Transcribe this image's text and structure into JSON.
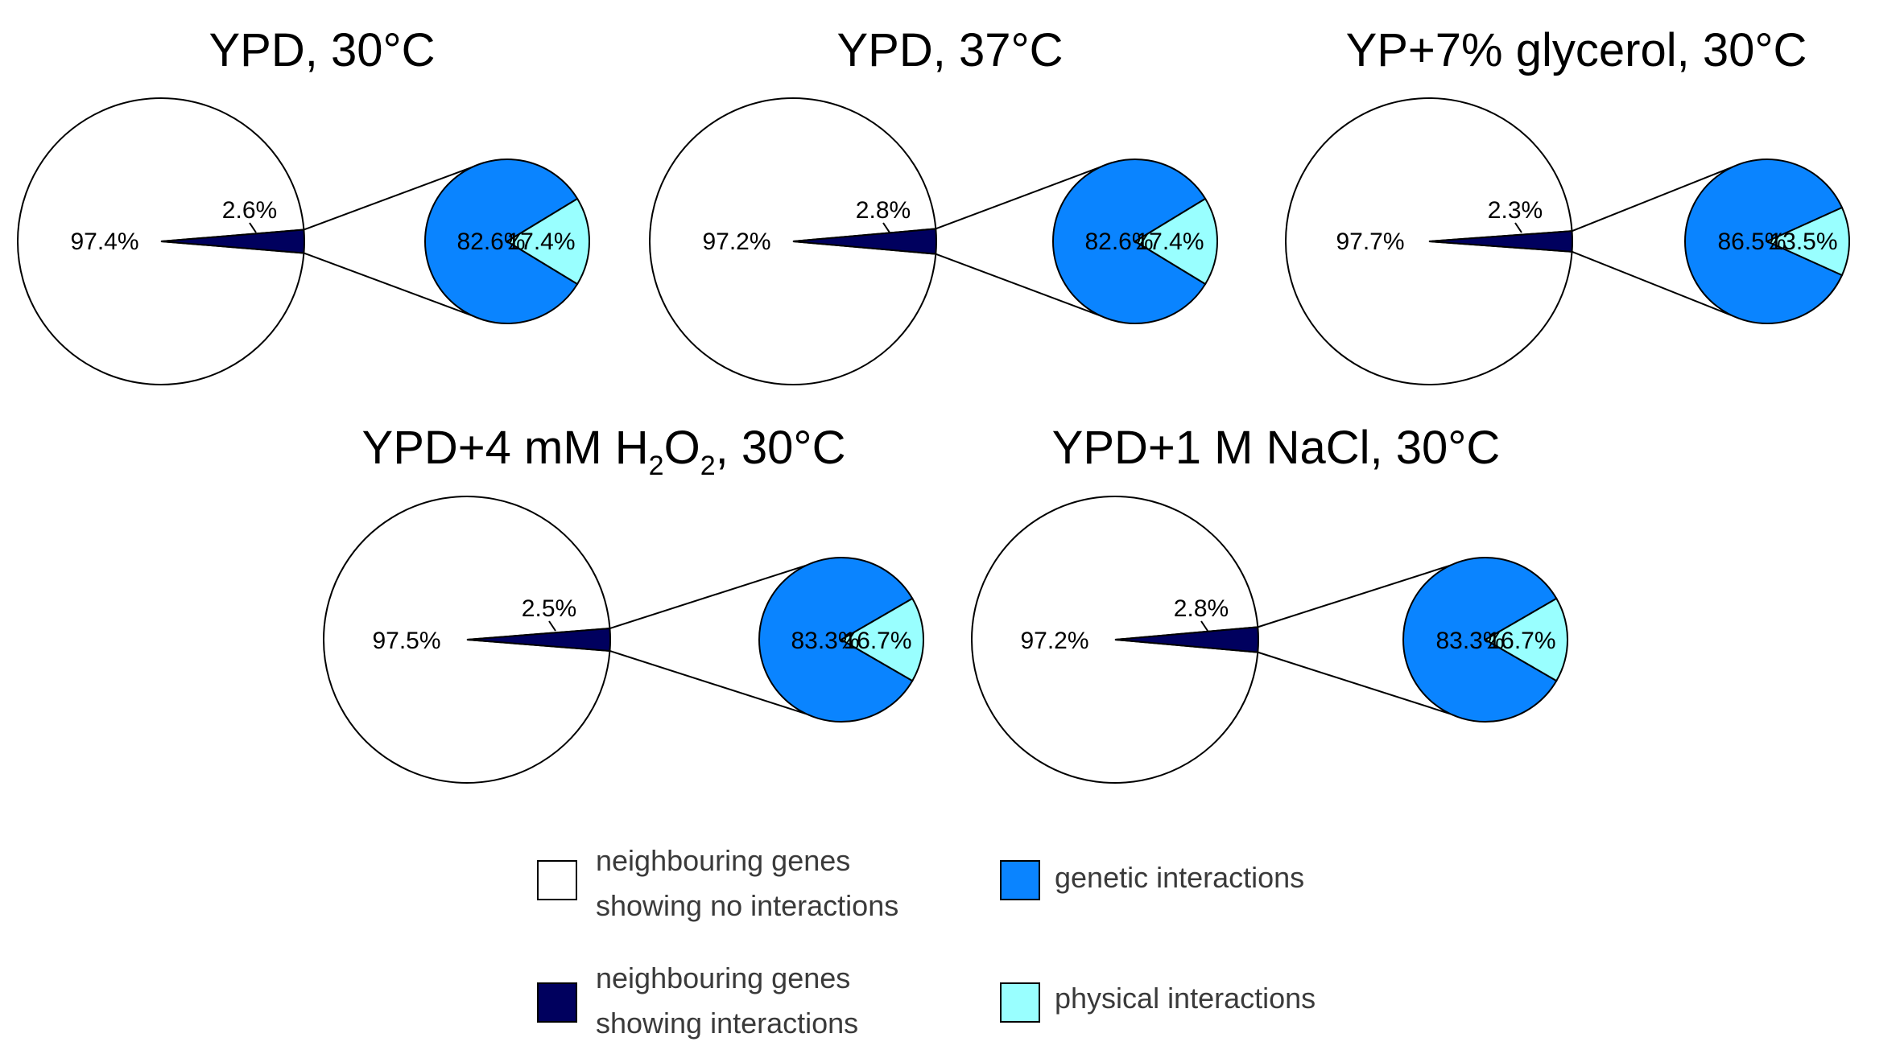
{
  "chart_data": [
    {
      "type": "pie",
      "title": "YPD, 30°C",
      "title_sub": "",
      "title_suffix": "",
      "main": {
        "categories": [
          "neighbouring genes showing no interactions",
          "neighbouring genes showing interactions"
        ],
        "values": [
          97.4,
          2.6
        ],
        "labels": [
          "97.4%",
          "2.6%"
        ]
      },
      "breakdown": {
        "categories": [
          "genetic interactions",
          "physical interactions"
        ],
        "values": [
          82.6,
          17.4
        ],
        "labels": [
          "82.6%",
          "17.4%"
        ]
      }
    },
    {
      "type": "pie",
      "title": "YPD, 37°C",
      "title_sub": "",
      "title_suffix": "",
      "main": {
        "categories": [
          "neighbouring genes showing no interactions",
          "neighbouring genes showing interactions"
        ],
        "values": [
          97.2,
          2.8
        ],
        "labels": [
          "97.2%",
          "2.8%"
        ]
      },
      "breakdown": {
        "categories": [
          "genetic interactions",
          "physical interactions"
        ],
        "values": [
          82.6,
          17.4
        ],
        "labels": [
          "82.6%",
          "17.4%"
        ]
      }
    },
    {
      "type": "pie",
      "title": "YP+7% glycerol, 30°C",
      "title_sub": "",
      "title_suffix": "",
      "main": {
        "categories": [
          "neighbouring genes showing no interactions",
          "neighbouring genes showing interactions"
        ],
        "values": [
          97.7,
          2.3
        ],
        "labels": [
          "97.7%",
          "2.3%"
        ]
      },
      "breakdown": {
        "categories": [
          "genetic interactions",
          "physical interactions"
        ],
        "values": [
          86.5,
          13.5
        ],
        "labels": [
          "86.5%",
          "13.5%"
        ]
      }
    },
    {
      "type": "pie",
      "title": "YPD+4 mM H",
      "title_sub": "2",
      "title_mid": "O",
      "title_sub2": "2",
      "title_suffix": ", 30°C",
      "main": {
        "categories": [
          "neighbouring genes showing no interactions",
          "neighbouring genes showing interactions"
        ],
        "values": [
          97.5,
          2.5
        ],
        "labels": [
          "97.5%",
          "2.5%"
        ]
      },
      "breakdown": {
        "categories": [
          "genetic interactions",
          "physical interactions"
        ],
        "values": [
          83.3,
          16.7
        ],
        "labels": [
          "83.3%",
          "16.7%"
        ]
      }
    },
    {
      "type": "pie",
      "title": "YPD+1 M NaCl, 30°C",
      "title_sub": "",
      "title_suffix": "",
      "main": {
        "categories": [
          "neighbouring genes showing no interactions",
          "neighbouring genes showing interactions"
        ],
        "values": [
          97.2,
          2.8
        ],
        "labels": [
          "97.2%",
          "2.8%"
        ]
      },
      "breakdown": {
        "categories": [
          "genetic interactions",
          "physical interactions"
        ],
        "values": [
          83.3,
          16.7
        ],
        "labels": [
          "83.3%",
          "16.7%"
        ]
      }
    }
  ],
  "legend": {
    "items": [
      {
        "line1": "neighbouring genes",
        "line2": "showing no interactions",
        "color": "#ffffff"
      },
      {
        "line1": "genetic interactions",
        "line2": "",
        "color": "#0a84ff"
      },
      {
        "line1": "neighbouring genes",
        "line2": "showing interactions",
        "color": "#00005e"
      },
      {
        "line1": "physical interactions",
        "line2": "",
        "color": "#99ffff"
      }
    ]
  },
  "colors": {
    "no_interaction": "#ffffff",
    "interaction": "#00005e",
    "genetic": "#0a84ff",
    "physical": "#99ffff",
    "stroke": "#000000"
  }
}
